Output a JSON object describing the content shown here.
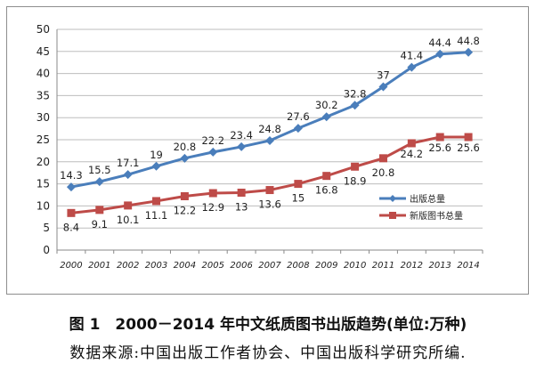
{
  "chart_data": {
    "type": "line",
    "title": "",
    "xlabel": "",
    "ylabel": "",
    "x": [
      "2000",
      "2001",
      "2002",
      "2003",
      "2004",
      "2005",
      "2006",
      "2007",
      "2008",
      "2009",
      "2010",
      "2011",
      "2012",
      "2013",
      "2014"
    ],
    "ylim": [
      0,
      50
    ],
    "yticks": [
      "0",
      "5",
      "10",
      "15",
      "20",
      "25",
      "30",
      "35",
      "40",
      "45",
      "50"
    ],
    "grid": true,
    "legend_position": "right",
    "series": [
      {
        "name": "出版总量",
        "color": "#4a7ebb",
        "marker": "diamond",
        "values": [
          14.3,
          15.5,
          17.1,
          19,
          20.8,
          22.2,
          23.4,
          24.8,
          27.6,
          30.2,
          32.8,
          37,
          41.4,
          44.4,
          44.8
        ],
        "labels": [
          "14.3",
          "15.5",
          "17.1",
          "19",
          "20.8",
          "22.2",
          "23.4",
          "24.8",
          "27.6",
          "30.2",
          "32.8",
          "37",
          "41.4",
          "44.4",
          "44.8"
        ]
      },
      {
        "name": "新版图书总量",
        "color": "#be4b48",
        "marker": "square",
        "values": [
          8.4,
          9.1,
          10.1,
          11.1,
          12.2,
          12.9,
          13,
          13.6,
          15,
          16.8,
          18.9,
          20.8,
          24.2,
          25.6,
          25.6
        ],
        "labels": [
          "8.4",
          "9.1",
          "10.1",
          "11.1",
          "12.2",
          "12.9",
          "13",
          "13.6",
          "15",
          "16.8",
          "18.9",
          "20.8",
          "24.2",
          "25.6",
          "25.6"
        ]
      }
    ]
  },
  "caption": "图 1　2000－2014 年中文纸质图书出版趋势(单位:万种)",
  "source": "数据来源:中国出版工作者协会、中国出版科学研究所编."
}
